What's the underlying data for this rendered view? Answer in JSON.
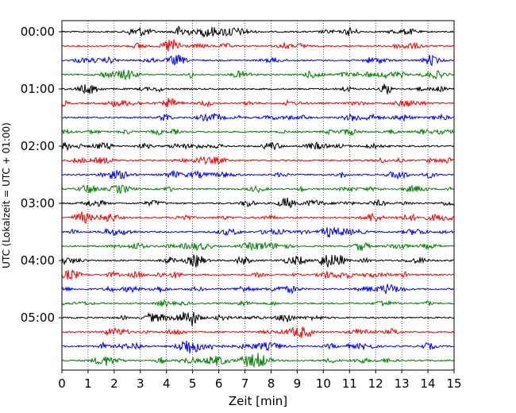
{
  "chart_data": {
    "type": "line",
    "title": "",
    "xlabel": "Zeit  [min]",
    "ylabel": "UTC (Lokalzeit = UTC + 01:00)",
    "xlim": [
      0,
      15
    ],
    "x_ticks": [
      "0",
      "1",
      "2",
      "3",
      "4",
      "5",
      "6",
      "7",
      "8",
      "9",
      "10",
      "11",
      "12",
      "13",
      "14",
      "15"
    ],
    "y_ticks": [
      "00:00",
      "01:00",
      "02:00",
      "03:00",
      "04:00",
      "05:00"
    ],
    "grid": "vertical dotted at each minute",
    "trace_interval_minutes": 15,
    "trace_start_times": [
      "00:00",
      "00:15",
      "00:30",
      "00:45",
      "01:00",
      "01:15",
      "01:30",
      "01:45",
      "02:00",
      "02:15",
      "02:30",
      "02:45",
      "03:00",
      "03:15",
      "03:30",
      "03:45",
      "04:00",
      "04:15",
      "04:30",
      "04:45",
      "05:00",
      "05:15",
      "05:30",
      "05:45"
    ],
    "trace_colors": [
      "#000000",
      "#ff0000",
      "#0000ff",
      "#008000"
    ],
    "series_count": 24
  }
}
